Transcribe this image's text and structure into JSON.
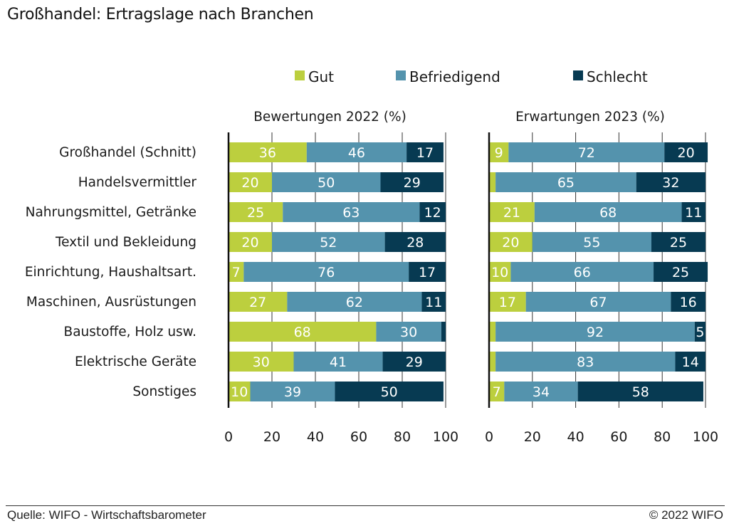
{
  "title": "Großhandel: Ertragslage nach Branchen",
  "footer": {
    "source": "Quelle: WIFO - Wirtschaftsbarometer",
    "copyright": "© 2022 WIFO"
  },
  "colors": {
    "gut": "#bccf3e",
    "befriedigend": "#5493ad",
    "schlecht": "#073a52",
    "axis": "#111111",
    "label_text": "#ffffff"
  },
  "chart_data": [
    {
      "type": "bar",
      "orientation": "horizontal",
      "stacked": true,
      "title": "Bewertungen 2022 (%)",
      "xlabel": "",
      "ylabel": "",
      "xlim": [
        0,
        100
      ],
      "xticks": [
        0,
        20,
        40,
        60,
        80,
        100
      ],
      "legend": {
        "position": "top",
        "entries": [
          "Gut",
          "Befriedigend",
          "Schlecht"
        ]
      },
      "categories": [
        "Großhandel (Schnitt)",
        "Handelsvermittler",
        "Nahrungsmittel, Getränke",
        "Textil und Bekleidung",
        "Einrichtung, Haushaltsart.",
        "Maschinen, Ausrüstungen",
        "Baustoffe, Holz usw.",
        "Elektrische Geräte",
        "Sonstiges"
      ],
      "series": [
        {
          "name": "Gut",
          "values": [
            36,
            20,
            25,
            20,
            7,
            27,
            68,
            30,
            10
          ],
          "labels": [
            "36",
            "20",
            "25",
            "20",
            "7",
            "27",
            "68",
            "30",
            "10"
          ]
        },
        {
          "name": "Befriedigend",
          "values": [
            46,
            50,
            63,
            52,
            76,
            62,
            30,
            41,
            39
          ],
          "labels": [
            "46",
            "50",
            "63",
            "52",
            "76",
            "62",
            "30",
            "41",
            "39"
          ]
        },
        {
          "name": "Schlecht",
          "values": [
            17,
            29,
            12,
            28,
            17,
            11,
            2,
            29,
            50
          ],
          "labels": [
            "17",
            "29",
            "12",
            "28",
            "17",
            "11",
            "",
            "29",
            "50"
          ]
        }
      ]
    },
    {
      "type": "bar",
      "orientation": "horizontal",
      "stacked": true,
      "title": "Erwartungen 2023 (%)",
      "xlabel": "",
      "ylabel": "",
      "xlim": [
        0,
        100
      ],
      "xticks": [
        0,
        20,
        40,
        60,
        80,
        100
      ],
      "legend": {
        "position": "top",
        "entries": [
          "Gut",
          "Befriedigend",
          "Schlecht"
        ]
      },
      "categories": [
        "Großhandel (Schnitt)",
        "Handelsvermittler",
        "Nahrungsmittel, Getränke",
        "Textil und Bekleidung",
        "Einrichtung, Haushaltsart.",
        "Maschinen, Ausrüstungen",
        "Baustoffe, Holz usw.",
        "Elektrische Geräte",
        "Sonstiges"
      ],
      "series": [
        {
          "name": "Gut",
          "values": [
            9,
            3,
            21,
            20,
            10,
            17,
            3,
            3,
            7
          ],
          "labels": [
            "9",
            "",
            "21",
            "20",
            "10",
            "17",
            "",
            "",
            "7"
          ]
        },
        {
          "name": "Befriedigend",
          "values": [
            72,
            65,
            68,
            55,
            66,
            67,
            92,
            83,
            34
          ],
          "labels": [
            "72",
            "65",
            "68",
            "55",
            "66",
            "67",
            "92",
            "83",
            "34"
          ]
        },
        {
          "name": "Schlecht",
          "values": [
            20,
            32,
            11,
            25,
            25,
            16,
            5,
            14,
            58
          ],
          "labels": [
            "20",
            "32",
            "11",
            "25",
            "25",
            "16",
            "5",
            "14",
            "58"
          ]
        }
      ]
    }
  ]
}
